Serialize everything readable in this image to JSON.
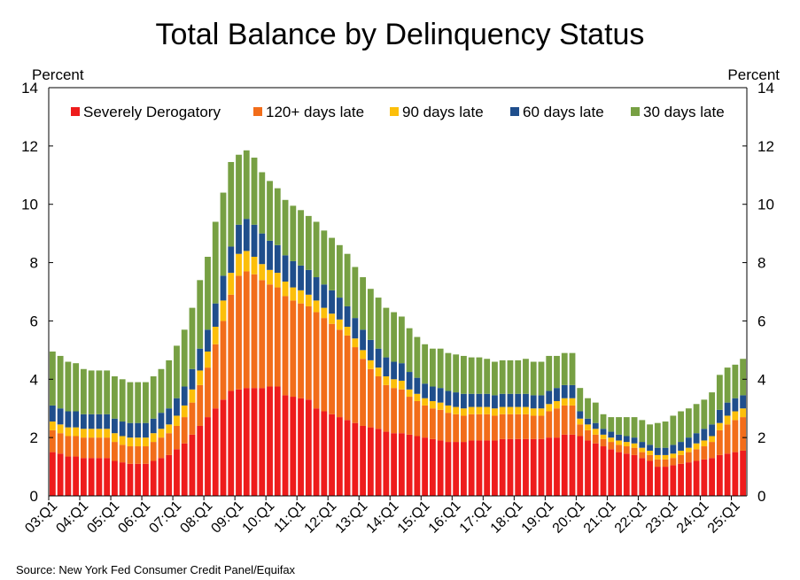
{
  "chart_data": {
    "type": "bar",
    "stacked": true,
    "title": "Total Balance by Delinquency Status",
    "ylabel_left": "Percent",
    "ylabel_right": "Percent",
    "ylim": [
      0,
      14
    ],
    "yticks": [
      0,
      2,
      4,
      6,
      8,
      10,
      12,
      14
    ],
    "legend_position": "top",
    "source": "Source: New York Fed Consumer Credit Panel/Equifax",
    "x_tick_labels": [
      "03:Q1",
      "04:Q1",
      "05:Q1",
      "06:Q1",
      "07:Q1",
      "08:Q1",
      "09:Q1",
      "10:Q1",
      "11:Q1",
      "12:Q1",
      "13:Q1",
      "14:Q1",
      "15:Q1",
      "16:Q1",
      "17:Q1",
      "18:Q1",
      "19:Q1",
      "20:Q1",
      "21:Q1",
      "22:Q1",
      "23:Q1",
      "24:Q1",
      "25:Q1"
    ],
    "first_period": "2003:Q1",
    "last_period": "2025:Q2",
    "series": [
      {
        "name": "Severely Derogatory",
        "color": "#ee1c1c",
        "values": [
          1.5,
          1.45,
          1.35,
          1.35,
          1.3,
          1.3,
          1.3,
          1.3,
          1.2,
          1.15,
          1.1,
          1.1,
          1.1,
          1.2,
          1.3,
          1.4,
          1.6,
          1.8,
          2.1,
          2.4,
          2.7,
          3.0,
          3.3,
          3.6,
          3.65,
          3.7,
          3.7,
          3.7,
          3.75,
          3.75,
          3.45,
          3.4,
          3.35,
          3.3,
          3.0,
          2.9,
          2.8,
          2.7,
          2.6,
          2.5,
          2.4,
          2.35,
          2.3,
          2.2,
          2.15,
          2.15,
          2.1,
          2.05,
          2.0,
          1.95,
          1.9,
          1.85,
          1.85,
          1.85,
          1.9,
          1.9,
          1.9,
          1.9,
          1.95,
          1.95,
          1.95,
          1.95,
          1.95,
          1.95,
          2.0,
          2.0,
          2.1,
          2.1,
          2.05,
          1.9,
          1.8,
          1.7,
          1.6,
          1.5,
          1.45,
          1.4,
          1.3,
          1.2,
          1.0,
          1.0,
          1.05,
          1.1,
          1.15,
          1.2,
          1.25,
          1.3,
          1.4,
          1.45,
          1.5,
          1.55
        ]
      },
      {
        "name": "120+ days late",
        "color": "#f26d1a",
        "values": [
          0.75,
          0.7,
          0.7,
          0.7,
          0.7,
          0.7,
          0.7,
          0.7,
          0.65,
          0.6,
          0.6,
          0.6,
          0.6,
          0.65,
          0.7,
          0.75,
          0.8,
          0.9,
          1.1,
          1.4,
          1.7,
          2.2,
          2.7,
          3.3,
          3.9,
          4.0,
          3.9,
          3.7,
          3.5,
          3.4,
          3.4,
          3.3,
          3.25,
          3.2,
          3.3,
          3.2,
          3.1,
          3.0,
          2.9,
          2.6,
          2.3,
          2.0,
          1.8,
          1.6,
          1.55,
          1.5,
          1.3,
          1.2,
          1.1,
          1.05,
          1.05,
          1.0,
          0.95,
          0.9,
          0.9,
          0.9,
          0.9,
          0.85,
          0.85,
          0.85,
          0.85,
          0.85,
          0.8,
          0.8,
          0.9,
          1.0,
          1.0,
          1.0,
          0.4,
          0.35,
          0.3,
          0.25,
          0.25,
          0.25,
          0.25,
          0.25,
          0.2,
          0.2,
          0.25,
          0.25,
          0.25,
          0.3,
          0.35,
          0.4,
          0.45,
          0.55,
          0.85,
          1.0,
          1.1,
          1.15
        ]
      },
      {
        "name": "90 days late",
        "color": "#fcbf0a",
        "values": [
          0.3,
          0.3,
          0.3,
          0.3,
          0.3,
          0.3,
          0.3,
          0.3,
          0.3,
          0.3,
          0.3,
          0.3,
          0.3,
          0.3,
          0.3,
          0.3,
          0.35,
          0.4,
          0.45,
          0.5,
          0.55,
          0.6,
          0.7,
          0.75,
          0.75,
          0.7,
          0.6,
          0.55,
          0.5,
          0.5,
          0.5,
          0.45,
          0.45,
          0.4,
          0.4,
          0.35,
          0.35,
          0.35,
          0.3,
          0.3,
          0.3,
          0.3,
          0.3,
          0.3,
          0.3,
          0.3,
          0.25,
          0.25,
          0.25,
          0.25,
          0.25,
          0.25,
          0.25,
          0.25,
          0.25,
          0.25,
          0.25,
          0.25,
          0.25,
          0.25,
          0.25,
          0.25,
          0.25,
          0.25,
          0.25,
          0.25,
          0.25,
          0.25,
          0.2,
          0.2,
          0.2,
          0.15,
          0.15,
          0.15,
          0.15,
          0.15,
          0.15,
          0.15,
          0.15,
          0.15,
          0.15,
          0.15,
          0.15,
          0.2,
          0.2,
          0.2,
          0.25,
          0.3,
          0.3,
          0.3
        ]
      },
      {
        "name": "60 days late",
        "color": "#1f4e8c",
        "values": [
          0.55,
          0.55,
          0.55,
          0.55,
          0.5,
          0.5,
          0.5,
          0.5,
          0.5,
          0.5,
          0.5,
          0.5,
          0.5,
          0.5,
          0.55,
          0.55,
          0.6,
          0.65,
          0.7,
          0.75,
          0.75,
          0.8,
          0.85,
          0.9,
          1.0,
          1.1,
          1.1,
          1.05,
          1.0,
          0.95,
          0.9,
          0.9,
          0.85,
          0.85,
          0.8,
          0.8,
          0.8,
          0.75,
          0.7,
          0.7,
          0.7,
          0.7,
          0.65,
          0.65,
          0.6,
          0.6,
          0.6,
          0.55,
          0.5,
          0.5,
          0.5,
          0.5,
          0.5,
          0.5,
          0.45,
          0.45,
          0.45,
          0.45,
          0.45,
          0.45,
          0.45,
          0.45,
          0.45,
          0.45,
          0.45,
          0.45,
          0.45,
          0.45,
          0.25,
          0.2,
          0.2,
          0.2,
          0.2,
          0.2,
          0.2,
          0.2,
          0.2,
          0.2,
          0.25,
          0.25,
          0.3,
          0.3,
          0.35,
          0.35,
          0.4,
          0.4,
          0.45,
          0.45,
          0.45,
          0.45
        ]
      },
      {
        "name": "30 days late",
        "color": "#77a043",
        "values": [
          1.85,
          1.8,
          1.7,
          1.65,
          1.55,
          1.5,
          1.5,
          1.5,
          1.45,
          1.45,
          1.4,
          1.4,
          1.4,
          1.45,
          1.5,
          1.65,
          1.8,
          1.95,
          2.1,
          2.35,
          2.5,
          2.8,
          2.85,
          2.9,
          2.4,
          2.35,
          2.3,
          2.1,
          2.05,
          1.95,
          1.9,
          1.9,
          1.9,
          1.85,
          1.9,
          1.85,
          1.8,
          1.8,
          1.8,
          1.75,
          1.8,
          1.75,
          1.75,
          1.7,
          1.7,
          1.6,
          1.5,
          1.4,
          1.35,
          1.3,
          1.35,
          1.3,
          1.3,
          1.3,
          1.25,
          1.25,
          1.2,
          1.15,
          1.15,
          1.15,
          1.15,
          1.2,
          1.15,
          1.15,
          1.2,
          1.1,
          1.1,
          1.1,
          0.8,
          0.7,
          0.7,
          0.5,
          0.5,
          0.6,
          0.65,
          0.7,
          0.75,
          0.7,
          0.85,
          0.9,
          1.0,
          1.05,
          1.0,
          1.0,
          1.0,
          1.1,
          1.2,
          1.2,
          1.15,
          1.25
        ]
      }
    ]
  }
}
